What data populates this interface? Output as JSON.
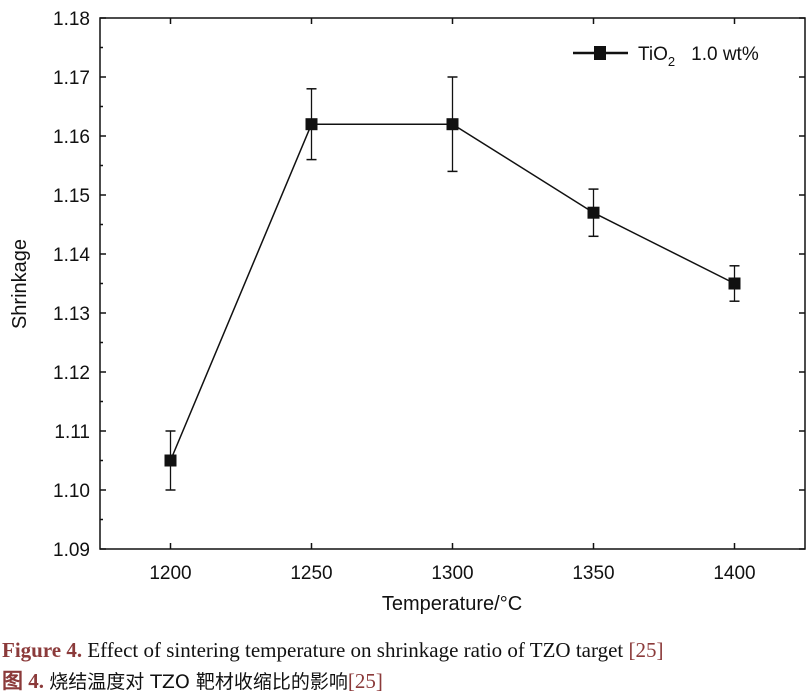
{
  "chart_data": {
    "type": "line",
    "xlabel": "Temperature/°C",
    "ylabel": "Shrinkage",
    "xlim": [
      1175,
      1425
    ],
    "ylim": [
      1.09,
      1.18
    ],
    "xticks": [
      1200,
      1250,
      1300,
      1350,
      1400
    ],
    "yticks": [
      "1.09",
      "1.10",
      "1.11",
      "1.12",
      "1.13",
      "1.14",
      "1.15",
      "1.16",
      "1.17",
      "1.18"
    ],
    "grid": false,
    "legend_position": "top-right",
    "series": [
      {
        "name": "TiO2 1.0 wt%",
        "legend_main": "TiO",
        "legend_sub": "2",
        "legend_rest": "1.0 wt%",
        "marker": "square",
        "color": "#111111",
        "x": [
          1200,
          1250,
          1300,
          1350,
          1400
        ],
        "y": [
          1.105,
          1.162,
          1.162,
          1.147,
          1.135
        ],
        "err_low": [
          1.1,
          1.156,
          1.154,
          1.143,
          1.132
        ],
        "err_high": [
          1.11,
          1.168,
          1.17,
          1.151,
          1.138
        ]
      }
    ]
  },
  "caption": {
    "en_label": "Figure 4.",
    "en_text": "Effect of sintering temperature on shrinkage ratio of TZO target",
    "en_ref": "[25]",
    "zh_label": "图 4.",
    "zh_text": "烧结温度对 TZO 靶材收缩比的影响",
    "zh_ref": "[25]"
  }
}
